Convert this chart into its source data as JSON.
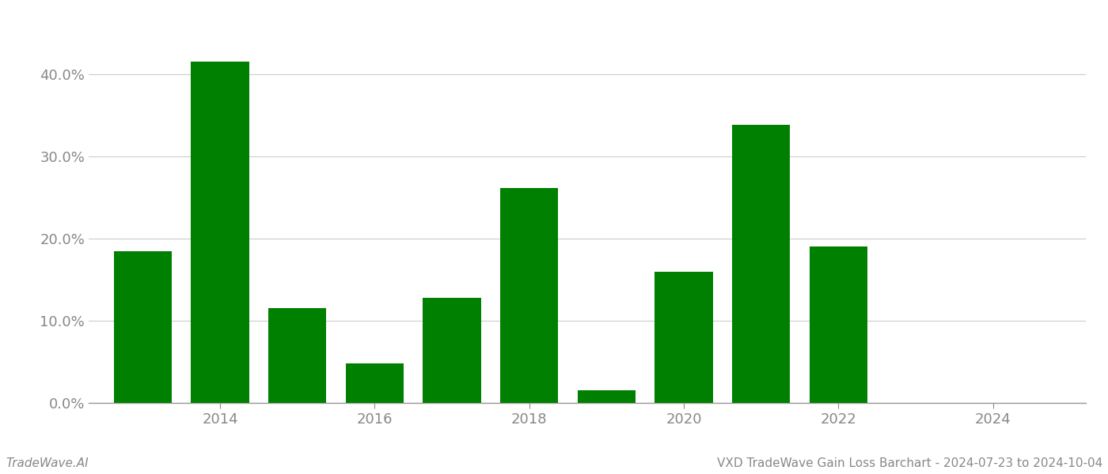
{
  "years": [
    2013,
    2014,
    2015,
    2016,
    2017,
    2018,
    2019,
    2020,
    2021,
    2022,
    2023
  ],
  "values": [
    0.185,
    0.415,
    0.115,
    0.048,
    0.128,
    0.262,
    0.015,
    0.16,
    0.338,
    0.19,
    0.0
  ],
  "bar_color": "#008000",
  "background_color": "#ffffff",
  "grid_color": "#cccccc",
  "axis_color": "#999999",
  "title": "VXD TradeWave Gain Loss Barchart - 2024-07-23 to 2024-10-04",
  "watermark": "TradeWave.AI",
  "ylim": [
    0,
    0.45
  ],
  "yticks": [
    0.0,
    0.1,
    0.2,
    0.3,
    0.4
  ],
  "ytick_labels": [
    "0.0%",
    "10.0%",
    "20.0%",
    "30.0%",
    "40.0%"
  ],
  "xticks": [
    2014,
    2016,
    2018,
    2020,
    2022,
    2024
  ],
  "xtick_labels": [
    "2014",
    "2016",
    "2018",
    "2020",
    "2022",
    "2024"
  ],
  "xlim": [
    2012.3,
    2025.2
  ],
  "title_fontsize": 11,
  "watermark_fontsize": 11,
  "tick_fontsize": 13,
  "tick_color": "#888888",
  "bar_width": 0.75
}
